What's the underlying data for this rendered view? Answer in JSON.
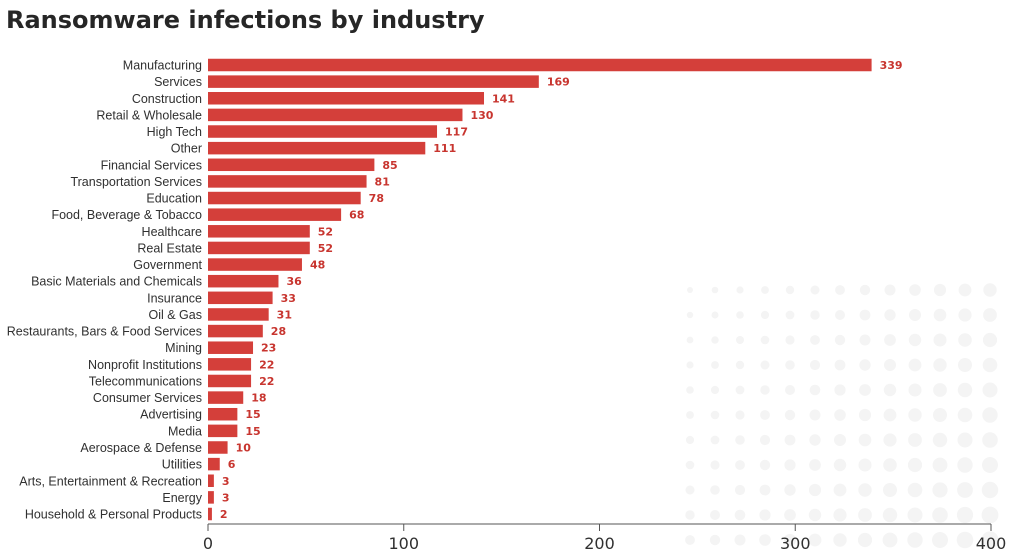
{
  "chart_data": {
    "type": "bar",
    "orientation": "horizontal",
    "title": "Ransomware infections by industry",
    "xlabel": "",
    "ylabel": "",
    "xlim": [
      0,
      400
    ],
    "xticks": [
      0,
      100,
      200,
      300,
      400
    ],
    "grid": false,
    "bar_color": "#d43f3a",
    "value_label_color": "#c8352f",
    "categories": [
      "Manufacturing",
      "Services",
      "Construction",
      "Retail & Wholesale",
      "High Tech",
      "Other",
      "Financial Services",
      "Transportation Services",
      "Education",
      "Food, Beverage & Tobacco",
      "Healthcare",
      "Real Estate",
      "Government",
      "Basic Materials and Chemicals",
      "Insurance",
      "Oil & Gas",
      "Restaurants, Bars & Food Services",
      "Mining",
      "Nonprofit Institutions",
      "Telecommunications",
      "Consumer Services",
      "Advertising",
      "Media",
      "Aerospace & Defense",
      "Utilities",
      "Arts, Entertainment & Recreation",
      "Energy",
      "Household & Personal Products"
    ],
    "values": [
      339,
      169,
      141,
      130,
      117,
      111,
      85,
      81,
      78,
      68,
      52,
      52,
      48,
      36,
      33,
      31,
      28,
      23,
      22,
      22,
      18,
      15,
      15,
      10,
      6,
      3,
      3,
      2
    ]
  }
}
